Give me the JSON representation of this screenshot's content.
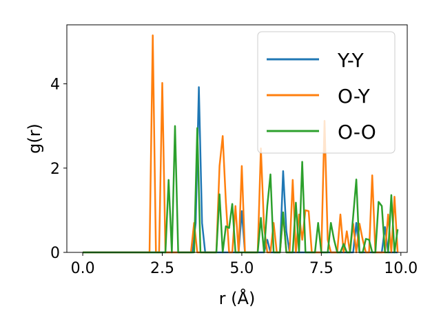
{
  "chart_data": {
    "type": "line",
    "xlabel": "r (Å)",
    "ylabel": "g(r)",
    "xlim": [
      -0.5,
      10.2
    ],
    "ylim": [
      0,
      5.4
    ],
    "xticks": [
      0.0,
      2.5,
      5.0,
      7.5,
      10.0
    ],
    "xtick_labels": [
      "0.0",
      "2.5",
      "5.0",
      "7.5",
      "10.0"
    ],
    "yticks": [
      0,
      2,
      4
    ],
    "ytick_labels": [
      "0",
      "2",
      "4"
    ],
    "grid": false,
    "legend_position": "top-right",
    "series": [
      {
        "name": "Y-Y",
        "color": "#1f77b4",
        "x": [
          0.0,
          3.45,
          3.55,
          3.65,
          3.75,
          3.85,
          4.9,
          5.0,
          5.1,
          5.7,
          5.8,
          5.9,
          6.2,
          6.3,
          6.4,
          6.5,
          8.5,
          8.6,
          8.7,
          9.4,
          9.5,
          9.6,
          9.9
        ],
        "y": [
          0.0,
          0.0,
          0.7,
          3.92,
          0.7,
          0.0,
          0.0,
          0.98,
          0.0,
          0.0,
          0.3,
          0.0,
          0.0,
          1.93,
          0.5,
          0.0,
          0.0,
          0.7,
          0.0,
          0.0,
          0.6,
          0.0,
          0.0
        ]
      },
      {
        "name": "O-Y",
        "color": "#ff7f0e",
        "x": [
          0.0,
          2.1,
          2.2,
          2.3,
          2.4,
          2.5,
          2.6,
          3.4,
          3.5,
          3.6,
          3.7,
          4.1,
          4.2,
          4.3,
          4.4,
          4.5,
          4.6,
          4.7,
          4.8,
          4.9,
          5.0,
          5.1,
          5.4,
          5.5,
          5.6,
          5.7,
          5.8,
          5.9,
          6.0,
          6.1,
          6.2,
          6.3,
          6.4,
          6.5,
          6.6,
          6.7,
          6.8,
          6.9,
          7.0,
          7.1,
          7.2,
          7.3,
          7.4,
          7.5,
          7.6,
          7.7,
          7.8,
          7.9,
          8.0,
          8.1,
          8.2,
          8.3,
          8.4,
          8.5,
          8.6,
          8.7,
          8.8,
          8.9,
          9.0,
          9.1,
          9.2,
          9.3,
          9.4,
          9.5,
          9.6,
          9.7,
          9.8,
          9.9
        ],
        "y": [
          0.0,
          0.0,
          5.15,
          0.0,
          0.0,
          4.02,
          0.0,
          0.0,
          0.7,
          0.0,
          0.0,
          0.0,
          0.0,
          2.05,
          2.76,
          1.2,
          0.0,
          0.0,
          1.1,
          0.0,
          2.05,
          0.0,
          0.0,
          0.0,
          2.47,
          0.6,
          0.0,
          0.0,
          0.7,
          0.0,
          0.0,
          0.9,
          0.0,
          0.0,
          1.72,
          0.0,
          0.9,
          0.3,
          1.0,
          0.98,
          0.0,
          0.0,
          0.0,
          0.0,
          3.12,
          0.3,
          0.0,
          0.0,
          0.0,
          0.9,
          0.0,
          0.5,
          0.0,
          0.68,
          0.0,
          0.68,
          0.3,
          0.0,
          0.0,
          1.83,
          0.0,
          0.0,
          0.0,
          0.0,
          0.9,
          0.0,
          1.32,
          0.0
        ]
      },
      {
        "name": "O-O",
        "color": "#2ca02c",
        "x": [
          0.0,
          2.5,
          2.6,
          2.7,
          2.8,
          2.9,
          3.0,
          3.5,
          3.6,
          3.7,
          4.1,
          4.2,
          4.3,
          4.4,
          4.5,
          4.6,
          4.7,
          4.8,
          5.4,
          5.5,
          5.6,
          5.7,
          5.8,
          5.9,
          6.0,
          6.1,
          6.2,
          6.3,
          6.4,
          6.5,
          6.6,
          6.7,
          6.8,
          6.9,
          7.0,
          7.1,
          7.2,
          7.3,
          7.4,
          7.5,
          7.6,
          7.7,
          7.8,
          7.9,
          8.0,
          8.1,
          8.2,
          8.3,
          8.4,
          8.5,
          8.6,
          8.7,
          8.8,
          8.9,
          9.0,
          9.1,
          9.2,
          9.3,
          9.4,
          9.5,
          9.6,
          9.7,
          9.8,
          9.9
        ],
        "y": [
          0.0,
          0.0,
          0.0,
          1.72,
          0.0,
          3.0,
          0.0,
          0.0,
          2.95,
          0.0,
          0.0,
          0.0,
          1.38,
          0.0,
          0.62,
          0.58,
          1.15,
          0.0,
          0.0,
          0.0,
          0.82,
          0.0,
          1.1,
          1.85,
          0.0,
          0.0,
          0.0,
          0.95,
          0.0,
          0.0,
          0.0,
          1.18,
          0.0,
          2.15,
          0.0,
          0.0,
          0.0,
          0.0,
          0.7,
          0.0,
          0.0,
          0.0,
          0.7,
          0.3,
          0.0,
          0.0,
          0.2,
          0.0,
          0.0,
          0.85,
          1.73,
          0.0,
          0.0,
          0.32,
          0.3,
          0.0,
          0.0,
          1.2,
          1.1,
          0.0,
          0.0,
          1.36,
          0.0,
          0.55
        ]
      }
    ]
  }
}
